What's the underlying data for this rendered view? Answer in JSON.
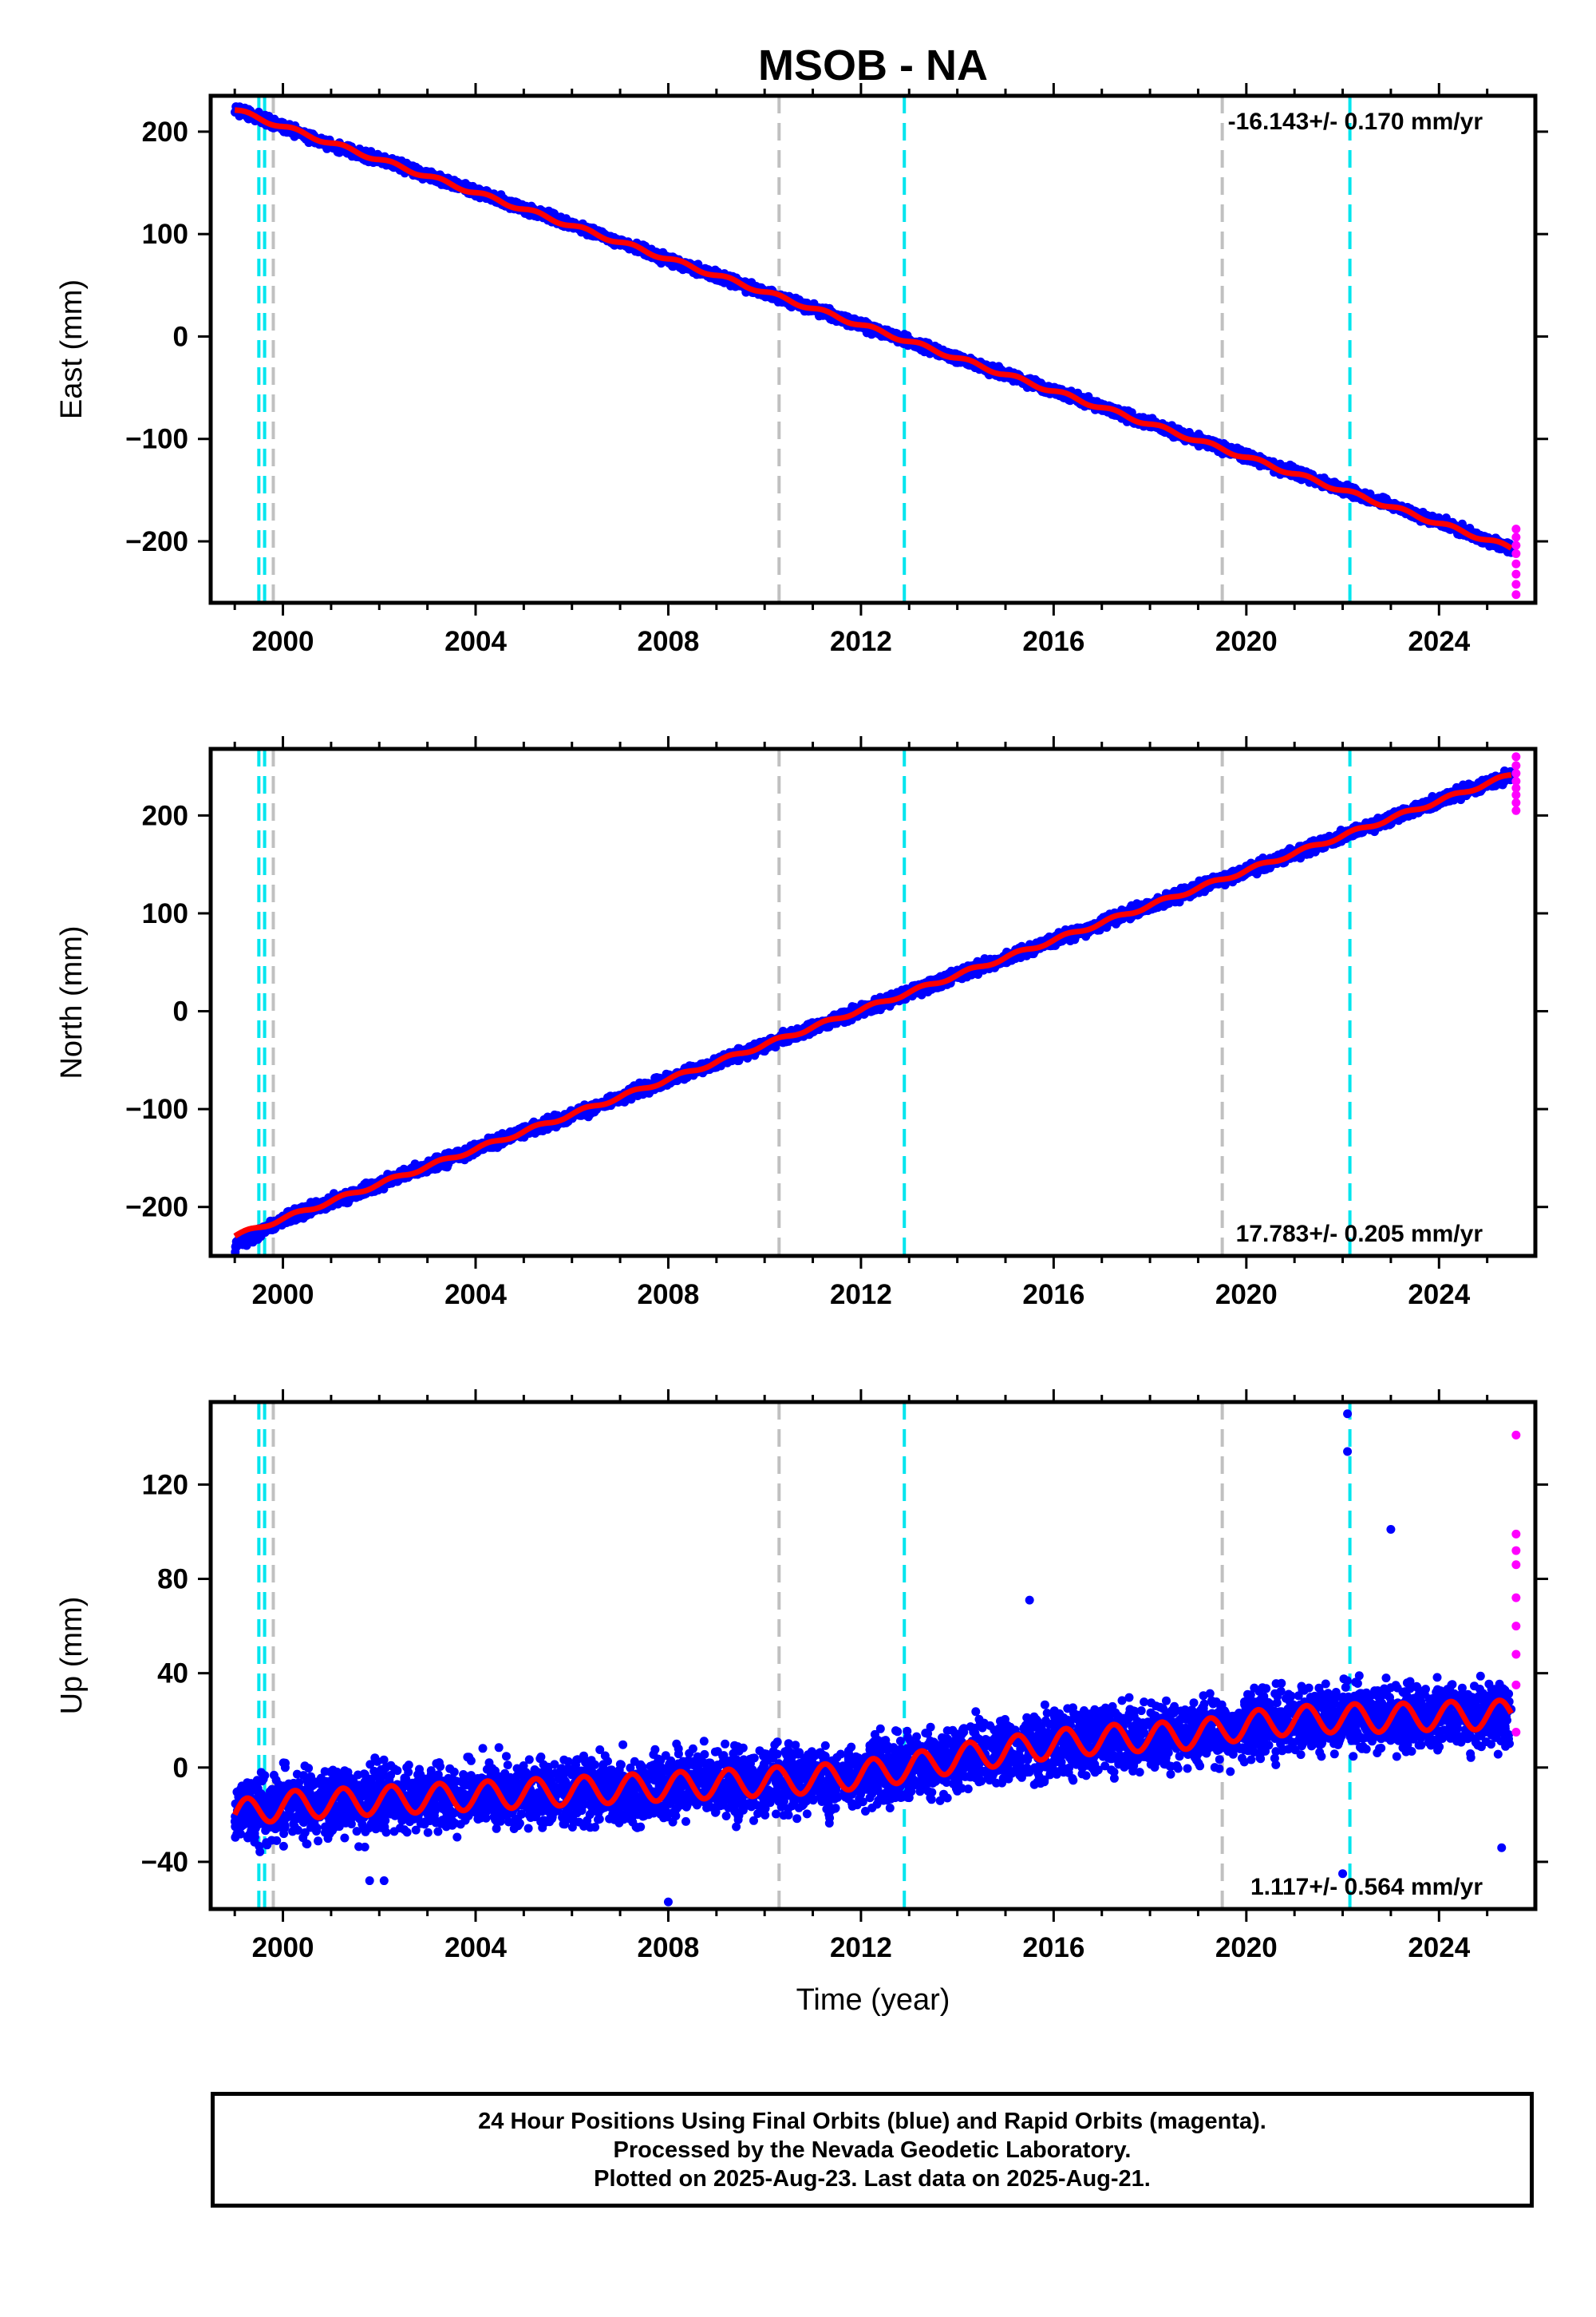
{
  "chart_data": [
    {
      "type": "scatter",
      "panel": "east",
      "title": "MSOB - NA",
      "xlabel": "",
      "ylabel": "East (mm)",
      "xlim": [
        1998.5,
        2026.0
      ],
      "ylim": [
        -260,
        235
      ],
      "x_ticks": [
        2000,
        2004,
        2008,
        2012,
        2016,
        2020,
        2024
      ],
      "y_ticks": [
        -200,
        -100,
        0,
        100,
        200
      ],
      "rate_label": "-16.143+/- 0.170 mm/yr",
      "rate_position": "top-right",
      "grid": false,
      "series": [
        {
          "name": "Final Orbits",
          "color": "#0000ff",
          "x": [
            1999.0,
            2000.0,
            2001.0,
            2002.0,
            2003.0,
            2004.0,
            2005.0,
            2006.0,
            2007.0,
            2008.0,
            2009.0,
            2010.0,
            2011.0,
            2012.0,
            2013.0,
            2014.0,
            2015.0,
            2016.0,
            2017.0,
            2018.0,
            2019.0,
            2020.0,
            2021.0,
            2022.0,
            2023.0,
            2024.0,
            2025.0,
            2025.5
          ],
          "y": [
            222,
            205,
            187,
            173,
            157,
            141,
            125,
            109,
            92,
            75,
            59,
            43,
            27,
            11,
            -5,
            -21,
            -37,
            -53,
            -69,
            -85,
            -101,
            -117,
            -133,
            -149,
            -165,
            -181,
            -199,
            -207
          ],
          "spread": 4
        },
        {
          "name": "Rapid Orbits",
          "color": "#ff00ff",
          "x": [
            2025.6,
            2025.6,
            2025.6,
            2025.6,
            2025.6,
            2025.6,
            2025.6,
            2025.6
          ],
          "y": [
            -188,
            -196,
            -204,
            -212,
            -222,
            -232,
            -242,
            -252
          ]
        }
      ],
      "fit": {
        "name": "Model",
        "color": "#ff0000",
        "x0": 2000.0,
        "y0": 205,
        "rate": -16.143,
        "amplitude": 2
      },
      "vlines": [
        {
          "x": 1999.5,
          "color": "#00e5ee"
        },
        {
          "x": 1999.62,
          "color": "#00e5ee"
        },
        {
          "x": 1999.8,
          "color": "#c0c0c0"
        },
        {
          "x": 2010.3,
          "color": "#c0c0c0"
        },
        {
          "x": 2012.9,
          "color": "#00e5ee"
        },
        {
          "x": 2019.5,
          "color": "#c0c0c0"
        },
        {
          "x": 2022.15,
          "color": "#00e5ee"
        }
      ]
    },
    {
      "type": "scatter",
      "panel": "north",
      "title": "",
      "xlabel": "",
      "ylabel": "North (mm)",
      "xlim": [
        1998.5,
        2026.0
      ],
      "ylim": [
        -250,
        268
      ],
      "x_ticks": [
        2000,
        2004,
        2008,
        2012,
        2016,
        2020,
        2024
      ],
      "y_ticks": [
        -200,
        -100,
        0,
        100,
        200
      ],
      "rate_label": "17.783+/- 0.205 mm/yr",
      "rate_position": "bottom-right",
      "grid": false,
      "series": [
        {
          "name": "Final Orbits",
          "color": "#0000ff",
          "x": [
            1999.0,
            2000.0,
            2001.0,
            2002.0,
            2003.0,
            2004.0,
            2005.0,
            2006.0,
            2007.0,
            2008.0,
            2009.0,
            2010.0,
            2011.0,
            2012.0,
            2013.0,
            2014.0,
            2015.0,
            2016.0,
            2017.0,
            2018.0,
            2019.0,
            2020.0,
            2021.0,
            2022.0,
            2023.0,
            2024.0,
            2025.0,
            2025.5
          ],
          "y": [
            -240,
            -212,
            -195,
            -177,
            -159,
            -141,
            -123,
            -106,
            -88,
            -70,
            -52,
            -35,
            -17,
            1,
            19,
            37,
            54,
            72,
            90,
            108,
            126,
            143,
            161,
            179,
            197,
            215,
            233,
            240
          ],
          "spread": 5
        },
        {
          "name": "Rapid Orbits",
          "color": "#ff00ff",
          "x": [
            2025.6,
            2025.6,
            2025.6,
            2025.6,
            2025.6,
            2025.6,
            2025.6,
            2025.6
          ],
          "y": [
            205,
            213,
            221,
            228,
            235,
            243,
            251,
            260
          ]
        }
      ],
      "fit": {
        "name": "Model",
        "color": "#ff0000",
        "x0": 2000.0,
        "y0": -212,
        "rate": 17.783,
        "amplitude": 2
      },
      "vlines": [
        {
          "x": 1999.5,
          "color": "#00e5ee"
        },
        {
          "x": 1999.62,
          "color": "#00e5ee"
        },
        {
          "x": 1999.8,
          "color": "#c0c0c0"
        },
        {
          "x": 2010.3,
          "color": "#c0c0c0"
        },
        {
          "x": 2012.9,
          "color": "#00e5ee"
        },
        {
          "x": 2019.5,
          "color": "#c0c0c0"
        },
        {
          "x": 2022.15,
          "color": "#00e5ee"
        }
      ]
    },
    {
      "type": "scatter",
      "panel": "up",
      "title": "",
      "xlabel": "Time (year)",
      "ylabel": "Up (mm)",
      "xlim": [
        1998.5,
        2026.0
      ],
      "ylim": [
        -60,
        155
      ],
      "x_ticks": [
        2000,
        2004,
        2008,
        2012,
        2016,
        2020,
        2024
      ],
      "y_ticks": [
        -40,
        0,
        40,
        80,
        120
      ],
      "rate_label": "1.117+/- 0.564 mm/yr",
      "rate_position": "bottom-right",
      "grid": false,
      "series": [
        {
          "name": "Final Orbits",
          "color": "#0000ff",
          "x": [
            1999.0,
            2000.0,
            2001.0,
            2002.0,
            2003.0,
            2004.0,
            2005.0,
            2006.0,
            2007.0,
            2008.0,
            2009.0,
            2010.0,
            2011.0,
            2012.0,
            2013.0,
            2014.0,
            2015.0,
            2016.0,
            2017.0,
            2018.0,
            2019.0,
            2020.0,
            2021.0,
            2022.0,
            2023.0,
            2024.0,
            2025.0,
            2025.5
          ],
          "y": [
            -20,
            -16,
            -15,
            -14,
            -13,
            -12,
            -11,
            -10,
            -9,
            -8,
            -7,
            -6,
            -5,
            -3,
            0,
            4,
            7,
            10,
            12,
            13,
            14,
            18,
            20,
            21,
            21,
            22,
            22,
            23
          ],
          "spread": 12
        },
        {
          "name": "Rapid Orbits",
          "color": "#ff00ff",
          "x": [
            2025.6,
            2025.6,
            2025.6,
            2025.6,
            2025.6,
            2025.6,
            2025.6,
            2025.6,
            2025.6
          ],
          "y": [
            141,
            99,
            92,
            86,
            72,
            60,
            48,
            35,
            15
          ]
        }
      ],
      "outliers": {
        "color": "#0000ff",
        "x": [
          2001.8,
          2002.1,
          2008.0,
          2015.5,
          2022.1,
          2022.1,
          2023.0,
          2022.0,
          2025.3
        ],
        "y": [
          -48,
          -48,
          -57,
          71,
          150,
          134,
          101,
          -45,
          -34
        ]
      },
      "fit": {
        "name": "Model",
        "color": "#ff0000",
        "x0": 2000.0,
        "y0": -16,
        "rate": 1.117,
        "amplitude": 6
      },
      "vlines": [
        {
          "x": 1999.5,
          "color": "#00e5ee"
        },
        {
          "x": 1999.62,
          "color": "#00e5ee"
        },
        {
          "x": 1999.8,
          "color": "#c0c0c0"
        },
        {
          "x": 2010.3,
          "color": "#c0c0c0"
        },
        {
          "x": 2012.9,
          "color": "#00e5ee"
        },
        {
          "x": 2019.5,
          "color": "#c0c0c0"
        },
        {
          "x": 2022.15,
          "color": "#00e5ee"
        }
      ]
    }
  ],
  "footer": {
    "line1": "24 Hour Positions Using Final Orbits (blue) and Rapid Orbits (magenta).",
    "line2": "Processed by the Nevada Geodetic Laboratory.",
    "line3": "Plotted on 2025-Aug-23. Last data on 2025-Aug-21."
  }
}
